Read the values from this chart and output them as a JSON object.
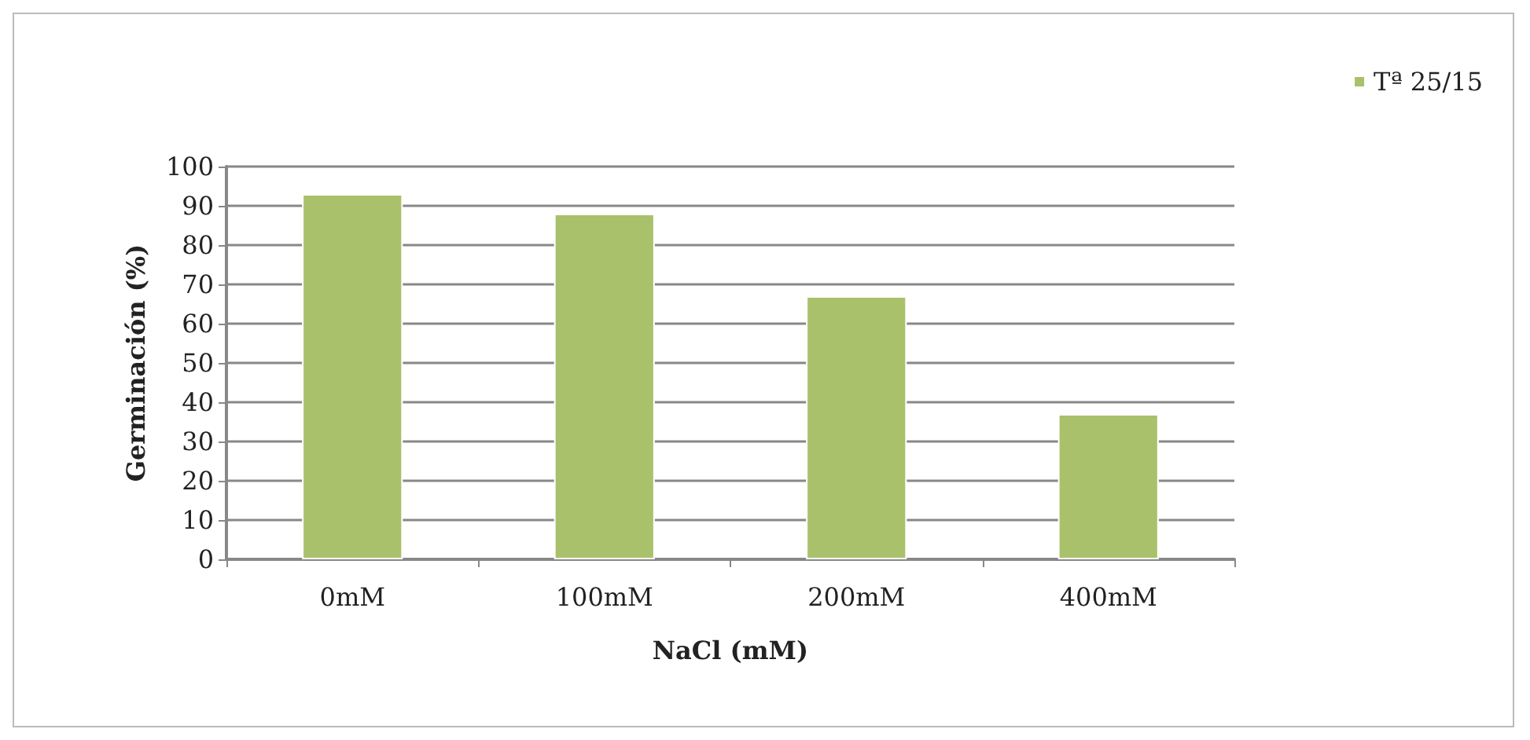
{
  "chart_data": {
    "type": "bar",
    "xlabel": "NaCl (mM)",
    "ylabel": "Germinación (%)",
    "categories": [
      "0mM",
      "100mM",
      "200mM",
      "400mM"
    ],
    "series": [
      {
        "name": "Tª 25/15",
        "color": "#a9c16b",
        "values": [
          93,
          88,
          67,
          37
        ]
      }
    ],
    "ylim": [
      0,
      100
    ],
    "yticks": [
      0,
      10,
      20,
      30,
      40,
      50,
      60,
      70,
      80,
      90,
      100
    ],
    "grid": "y",
    "legend": "top right"
  }
}
